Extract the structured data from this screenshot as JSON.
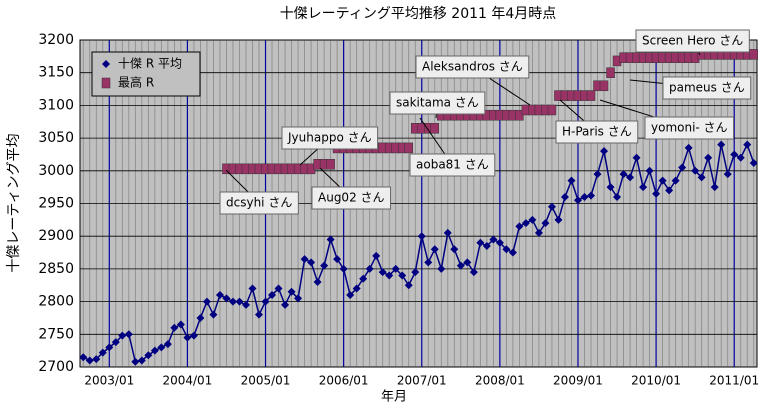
{
  "chart_data": {
    "type": "line",
    "title": "十傑レーティング平均推移 2011 年4月時点",
    "x_label": "年月",
    "y_label": "十傑レーティング平均",
    "categories": [
      null,
      null,
      null,
      null,
      "2003/01",
      null,
      null,
      null,
      null,
      null,
      null,
      null,
      null,
      null,
      null,
      null,
      "2004/01",
      null,
      null,
      null,
      null,
      null,
      null,
      null,
      null,
      null,
      null,
      null,
      "2005/01",
      null,
      null,
      null,
      null,
      null,
      null,
      null,
      null,
      null,
      null,
      null,
      "2006/01",
      null,
      null,
      null,
      null,
      null,
      null,
      null,
      null,
      null,
      null,
      null,
      "2007/01",
      null,
      null,
      null,
      null,
      null,
      null,
      null,
      null,
      null,
      null,
      null,
      "2008/01",
      null,
      null,
      null,
      null,
      null,
      null,
      null,
      null,
      null,
      null,
      null,
      "2009/01",
      null,
      null,
      null,
      null,
      null,
      null,
      null,
      null,
      null,
      null,
      null,
      "2010/01",
      null,
      null,
      null,
      null,
      null,
      null,
      null,
      null,
      null,
      null,
      null,
      "2011/01",
      null,
      null,
      null
    ],
    "series": [
      {
        "name": "十傑 R 平均",
        "color": "#000080",
        "marker": "diamond",
        "values": [
          2715,
          2710,
          2712,
          2722,
          2730,
          2738,
          2748,
          2750,
          2708,
          2710,
          2718,
          2725,
          2730,
          2735,
          2760,
          2765,
          2745,
          2748,
          2775,
          2800,
          2780,
          2810,
          2805,
          2800,
          2800,
          2795,
          2820,
          2780,
          2800,
          2810,
          2820,
          2795,
          2815,
          2805,
          2865,
          2860,
          2830,
          2855,
          2895,
          2865,
          2850,
          2810,
          2820,
          2835,
          2850,
          2870,
          2845,
          2840,
          2850,
          2840,
          2825,
          2845,
          2900,
          2860,
          2880,
          2850,
          2905,
          2880,
          2855,
          2860,
          2845,
          2890,
          2885,
          2895,
          2890,
          2880,
          2875,
          2915,
          2920,
          2925,
          2905,
          2920,
          2945,
          2925,
          2960,
          2985,
          2955,
          2960,
          2962,
          2995,
          3030,
          2975,
          2960,
          2995,
          2990,
          3020,
          2975,
          3000,
          2965,
          2985,
          2970,
          2985,
          3005,
          3035,
          3000,
          2990,
          3020,
          2975,
          3040,
          2995,
          3025,
          3020,
          3040,
          3012
        ]
      },
      {
        "name": "最高 R",
        "color": "#993366",
        "marker": "square",
        "line": false,
        "values": [
          null,
          null,
          null,
          null,
          null,
          null,
          null,
          null,
          null,
          null,
          null,
          null,
          null,
          null,
          null,
          null,
          null,
          null,
          null,
          null,
          null,
          null,
          3003,
          3003,
          3003,
          3003,
          3003,
          3003,
          3003,
          3003,
          3003,
          3003,
          3003,
          3003,
          3003,
          3003,
          3010,
          3010,
          3010,
          3035,
          3035,
          3035,
          3035,
          3035,
          3035,
          3035,
          3035,
          3035,
          3035,
          3035,
          3035,
          3065,
          3065,
          3065,
          3065,
          3085,
          3085,
          3085,
          3085,
          3085,
          3085,
          3085,
          3085,
          3085,
          3085,
          3085,
          3085,
          3085,
          3093,
          3093,
          3093,
          3093,
          3093,
          3115,
          3115,
          3115,
          3115,
          3115,
          3115,
          3130,
          3130,
          3150,
          3168,
          3173,
          3173,
          3173,
          3173,
          3173,
          3173,
          3173,
          3173,
          3173,
          3173,
          3173,
          3173,
          3178,
          3178,
          3178,
          3178,
          3178,
          3178,
          3178,
          3178,
          3178
        ]
      }
    ],
    "annotations": [
      "dcsyhi さん",
      "Jyuhappo さん",
      "Aug02 さん",
      "aoba81 さん",
      "sakitama さん",
      "Aleksandros さん",
      "H-Paris さん",
      "yomoni- さん",
      "pameus さん",
      "Screen Hero さん"
    ],
    "ylim": [
      2700,
      3200
    ],
    "yticks": [
      2700,
      2750,
      2800,
      2850,
      2900,
      2950,
      3000,
      3050,
      3100,
      3150,
      3200
    ],
    "grid": true,
    "legend": "upper left"
  }
}
